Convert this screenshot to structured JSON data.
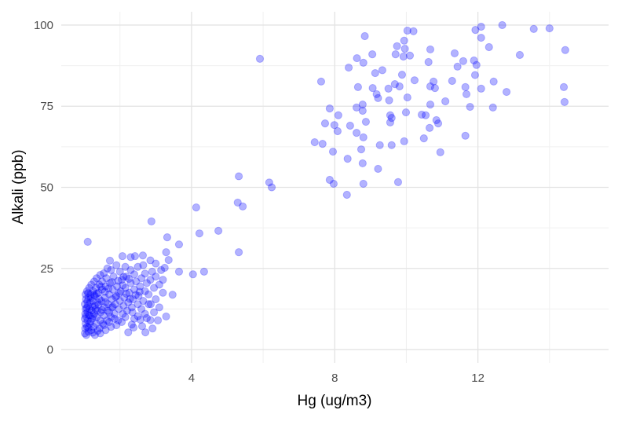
{
  "chart_data": {
    "type": "scatter",
    "title": "",
    "xlabel": "Hg (ug/m3)",
    "ylabel": "Alkali (ppb)",
    "xlim": [
      0.36,
      15.65
    ],
    "ylim": [
      -4.1,
      104.1
    ],
    "x_ticks": [
      4,
      8,
      12
    ],
    "y_ticks": [
      0,
      25,
      50,
      75,
      100
    ],
    "x_minor": [
      2,
      6,
      10,
      14
    ],
    "y_minor": [
      12.5,
      37.5,
      62.5,
      87.5
    ],
    "grid": true,
    "legend": "none",
    "point_color": "#0000ff",
    "point_alpha": 0.3,
    "points": [
      [
        5.91,
        89.6
      ],
      [
        7.62,
        82.6
      ],
      [
        8.84,
        96.6
      ],
      [
        10.03,
        98.3
      ],
      [
        10.2,
        98.1
      ],
      [
        9.94,
        95.2
      ],
      [
        9.96,
        92.7
      ],
      [
        9.74,
        93.5
      ],
      [
        9.7,
        91
      ],
      [
        9.92,
        90.3
      ],
      [
        10.1,
        90.6
      ],
      [
        9.05,
        91
      ],
      [
        8.62,
        89.8
      ],
      [
        8.8,
        88.4
      ],
      [
        8.39,
        86.9
      ],
      [
        9.13,
        85.2
      ],
      [
        9.33,
        86.1
      ],
      [
        9.88,
        84.7
      ],
      [
        10.23,
        83
      ],
      [
        8.65,
        80.9
      ],
      [
        9.06,
        80.6
      ],
      [
        9.5,
        80.4
      ],
      [
        9.68,
        81.8
      ],
      [
        9.81,
        81.1
      ],
      [
        9.17,
        78.7
      ],
      [
        9.21,
        77.5
      ],
      [
        9.52,
        76.8
      ],
      [
        10.03,
        77.7
      ],
      [
        8.78,
        75.5
      ],
      [
        8.61,
        74.6
      ],
      [
        8.78,
        73.6
      ],
      [
        7.86,
        74.3
      ],
      [
        8.1,
        72.2
      ],
      [
        7.73,
        69.7
      ],
      [
        7.99,
        69.2
      ],
      [
        8.08,
        67.3
      ],
      [
        8.43,
        69
      ],
      [
        8.61,
        66.8
      ],
      [
        8.87,
        70.2
      ],
      [
        8.8,
        65.4
      ],
      [
        9.55,
        72.2
      ],
      [
        9.59,
        71.4
      ],
      [
        9.55,
        70
      ],
      [
        9.99,
        73.1
      ],
      [
        10.43,
        72.4
      ],
      [
        10.54,
        72.2
      ],
      [
        10.65,
        68.3
      ],
      [
        10.84,
        70.7
      ],
      [
        10.89,
        69.7
      ],
      [
        10.49,
        65.1
      ],
      [
        9.94,
        64.2
      ],
      [
        9.59,
        63
      ],
      [
        9.26,
        63
      ],
      [
        8.74,
        61.7
      ],
      [
        7.44,
        63.9
      ],
      [
        7.66,
        63.4
      ],
      [
        7.95,
        61
      ],
      [
        8.36,
        58.8
      ],
      [
        8.78,
        57.4
      ],
      [
        9.21,
        55.7
      ],
      [
        7.86,
        52.3
      ],
      [
        7.97,
        51.1
      ],
      [
        8.8,
        51.1
      ],
      [
        9.77,
        51.6
      ],
      [
        8.34,
        47.7
      ],
      [
        10.95,
        60.8
      ],
      [
        10.62,
        88.6
      ],
      [
        10.67,
        92.5
      ],
      [
        10.76,
        82.6
      ],
      [
        10.67,
        81.1
      ],
      [
        10.8,
        80.6
      ],
      [
        11.28,
        82.8
      ],
      [
        11.35,
        91.3
      ],
      [
        11.59,
        88.9
      ],
      [
        11.43,
        87.2
      ],
      [
        11.89,
        89.1
      ],
      [
        11.96,
        87.7
      ],
      [
        11.92,
        84.6
      ],
      [
        12.44,
        82.6
      ],
      [
        12.09,
        80.4
      ],
      [
        12.8,
        79.4
      ],
      [
        11.65,
        80.9
      ],
      [
        11.68,
        78.7
      ],
      [
        11.09,
        76.5
      ],
      [
        10.67,
        75.5
      ],
      [
        11.78,
        74.8
      ],
      [
        12.42,
        74.6
      ],
      [
        11.65,
        65.9
      ],
      [
        11.93,
        98.5
      ],
      [
        12.09,
        99.5
      ],
      [
        12.09,
        96.1
      ],
      [
        12.31,
        93.2
      ],
      [
        12.68,
        100
      ],
      [
        13.17,
        90.8
      ],
      [
        13.56,
        98.8
      ],
      [
        14.0,
        99
      ],
      [
        14.44,
        92.3
      ],
      [
        14.4,
        80.9
      ],
      [
        14.42,
        76.3
      ],
      [
        6.24,
        50
      ],
      [
        6.17,
        51.5
      ],
      [
        5.32,
        53.4
      ],
      [
        4.13,
        43.8
      ],
      [
        5.29,
        45.3
      ],
      [
        5.43,
        44.1
      ],
      [
        2.88,
        39.5
      ],
      [
        1.1,
        33.2
      ],
      [
        4.22,
        35.8
      ],
      [
        4.75,
        36.6
      ],
      [
        5.32,
        30
      ],
      [
        3.32,
        34.6
      ],
      [
        3.65,
        32.4
      ],
      [
        3.29,
        30
      ],
      [
        3.36,
        27.6
      ],
      [
        1.72,
        27.4
      ],
      [
        2.07,
        28.8
      ],
      [
        2.42,
        28.8
      ],
      [
        2.64,
        29
      ],
      [
        3.65,
        24
      ],
      [
        4.04,
        23.2
      ],
      [
        4.35,
        24
      ],
      [
        3.47,
        16.9
      ],
      [
        3.29,
        10.2
      ],
      [
        2.86,
        14
      ],
      [
        2.33,
        7.7
      ],
      [
        2.75,
        9.7
      ],
      [
        3.06,
        9
      ],
      [
        2.71,
        5.3
      ],
      [
        2.23,
        5.3
      ],
      [
        2.91,
        6.5
      ],
      [
        2.57,
        9.2
      ],
      [
        2.4,
        9.5
      ],
      [
        2.38,
        6.8
      ],
      [
        2.62,
        7.2
      ],
      [
        2.5,
        10.3
      ],
      [
        2.85,
        9.1
      ],
      [
        1.02,
        5
      ],
      [
        1.03,
        6.5
      ],
      [
        1.04,
        8
      ],
      [
        1.02,
        9.5
      ],
      [
        1.03,
        11
      ],
      [
        1.04,
        12.5
      ],
      [
        1.02,
        14
      ],
      [
        1.05,
        15.5
      ],
      [
        1.06,
        4.5
      ],
      [
        1.08,
        7
      ],
      [
        1.1,
        9
      ],
      [
        1.09,
        11.5
      ],
      [
        1.1,
        13.5
      ],
      [
        1.12,
        16
      ],
      [
        1.12,
        5.5
      ],
      [
        1.15,
        8
      ],
      [
        1.16,
        10.5
      ],
      [
        1.15,
        12.5
      ],
      [
        1.17,
        14.5
      ],
      [
        1.18,
        17
      ],
      [
        1.2,
        6
      ],
      [
        1.22,
        9.5
      ],
      [
        1.21,
        12
      ],
      [
        1.24,
        15
      ],
      [
        1.25,
        18
      ],
      [
        1.26,
        7
      ],
      [
        1.28,
        11
      ],
      [
        1.3,
        13.5
      ],
      [
        1.3,
        16.5
      ],
      [
        1.33,
        19
      ],
      [
        1.34,
        8
      ],
      [
        1.35,
        10
      ],
      [
        1.37,
        12
      ],
      [
        1.38,
        14.5
      ],
      [
        1.4,
        17.5
      ],
      [
        1.42,
        20
      ],
      [
        1.43,
        6.5
      ],
      [
        1.45,
        9
      ],
      [
        1.46,
        11.5
      ],
      [
        1.48,
        15
      ],
      [
        1.5,
        18.5
      ],
      [
        1.5,
        21
      ],
      [
        1.53,
        8
      ],
      [
        1.55,
        10.5
      ],
      [
        1.56,
        13
      ],
      [
        1.58,
        16
      ],
      [
        1.6,
        19.5
      ],
      [
        1.62,
        22
      ],
      [
        1.64,
        9
      ],
      [
        1.65,
        12
      ],
      [
        1.67,
        14
      ],
      [
        1.7,
        17
      ],
      [
        1.72,
        20.5
      ],
      [
        1.75,
        10
      ],
      [
        1.77,
        13
      ],
      [
        1.78,
        15.5
      ],
      [
        1.8,
        18.5
      ],
      [
        1.82,
        22.5
      ],
      [
        1.85,
        11
      ],
      [
        1.87,
        14
      ],
      [
        1.9,
        16.5
      ],
      [
        1.92,
        19.5
      ],
      [
        1.95,
        9
      ],
      [
        1.97,
        12.5
      ],
      [
        2.0,
        15
      ],
      [
        2.02,
        18
      ],
      [
        2.05,
        21.5
      ],
      [
        2.08,
        11
      ],
      [
        2.1,
        13.5
      ],
      [
        2.12,
        16
      ],
      [
        2.15,
        19
      ],
      [
        2.18,
        22.5
      ],
      [
        2.2,
        12
      ],
      [
        2.23,
        14.5
      ],
      [
        2.26,
        17.5
      ],
      [
        2.3,
        20.5
      ],
      [
        2.33,
        13
      ],
      [
        2.36,
        15.5
      ],
      [
        2.4,
        18.5
      ],
      [
        2.45,
        21
      ],
      [
        2.5,
        14
      ],
      [
        2.52,
        16.5
      ],
      [
        2.56,
        19.5
      ],
      [
        2.6,
        22
      ],
      [
        2.65,
        15
      ],
      [
        2.7,
        18
      ],
      [
        2.75,
        20.5
      ],
      [
        2.8,
        17
      ],
      [
        2.85,
        21.5
      ],
      [
        2.95,
        19
      ],
      [
        3.0,
        22.5
      ],
      [
        3.1,
        20
      ],
      [
        3.15,
        24.5
      ],
      [
        3.2,
        21.5
      ],
      [
        2.9,
        24
      ],
      [
        2.5,
        25.5
      ],
      [
        2.3,
        24.5
      ],
      [
        2.0,
        24
      ],
      [
        1.75,
        24.5
      ],
      [
        1.55,
        23.5
      ],
      [
        1.35,
        22
      ],
      [
        1.2,
        20
      ],
      [
        1.08,
        18
      ],
      [
        1.04,
        17
      ],
      [
        1.14,
        19
      ],
      [
        1.28,
        21
      ],
      [
        1.45,
        23
      ],
      [
        1.65,
        25
      ],
      [
        1.9,
        26
      ],
      [
        2.15,
        25.5
      ],
      [
        2.65,
        26
      ],
      [
        2.85,
        27.5
      ],
      [
        1.3,
        4.5
      ],
      [
        1.45,
        5
      ],
      [
        1.6,
        6
      ],
      [
        1.75,
        7
      ],
      [
        1.9,
        7.5
      ],
      [
        2.05,
        8.5
      ],
      [
        1.24,
        5.2
      ],
      [
        1.38,
        5.8
      ],
      [
        1.55,
        7.5
      ],
      [
        1.7,
        8.5
      ],
      [
        1.85,
        9.5
      ],
      [
        2.15,
        10
      ],
      [
        2.35,
        11.5
      ],
      [
        2.6,
        12.5
      ],
      [
        2.8,
        14
      ],
      [
        3.0,
        15.5
      ],
      [
        3.2,
        17.5
      ],
      [
        3.1,
        13
      ],
      [
        2.95,
        11.5
      ],
      [
        2.7,
        11
      ],
      [
        1.12,
        6.8
      ],
      [
        1.18,
        8.6
      ],
      [
        1.25,
        10.2
      ],
      [
        1.32,
        12.4
      ],
      [
        1.4,
        13.8
      ],
      [
        1.5,
        12.2
      ],
      [
        1.6,
        14.6
      ],
      [
        1.7,
        11.4
      ],
      [
        1.8,
        13.2
      ],
      [
        1.88,
        16.2
      ],
      [
        1.98,
        17.4
      ],
      [
        2.08,
        19.8
      ],
      [
        2.18,
        17.2
      ],
      [
        2.28,
        15.6
      ],
      [
        2.44,
        16.8
      ],
      [
        2.55,
        17.8
      ],
      [
        1.05,
        10.2
      ],
      [
        1.07,
        12.8
      ],
      [
        1.09,
        14.8
      ],
      [
        1.11,
        17.4
      ],
      [
        1.13,
        10.6
      ],
      [
        1.19,
        15.8
      ],
      [
        1.23,
        13.2
      ],
      [
        1.27,
        16.8
      ],
      [
        1.35,
        17.2
      ],
      [
        1.42,
        15.6
      ],
      [
        1.47,
        19.4
      ],
      [
        1.58,
        17.8
      ],
      [
        1.68,
        18.8
      ],
      [
        1.78,
        20.8
      ],
      [
        1.95,
        21.2
      ],
      [
        2.1,
        22.4
      ],
      [
        2.25,
        21.8
      ],
      [
        2.4,
        23.2
      ],
      [
        2.7,
        23.4
      ],
      [
        3.25,
        25.2
      ],
      [
        2.3,
        28.5
      ],
      [
        3.0,
        26.5
      ]
    ]
  }
}
